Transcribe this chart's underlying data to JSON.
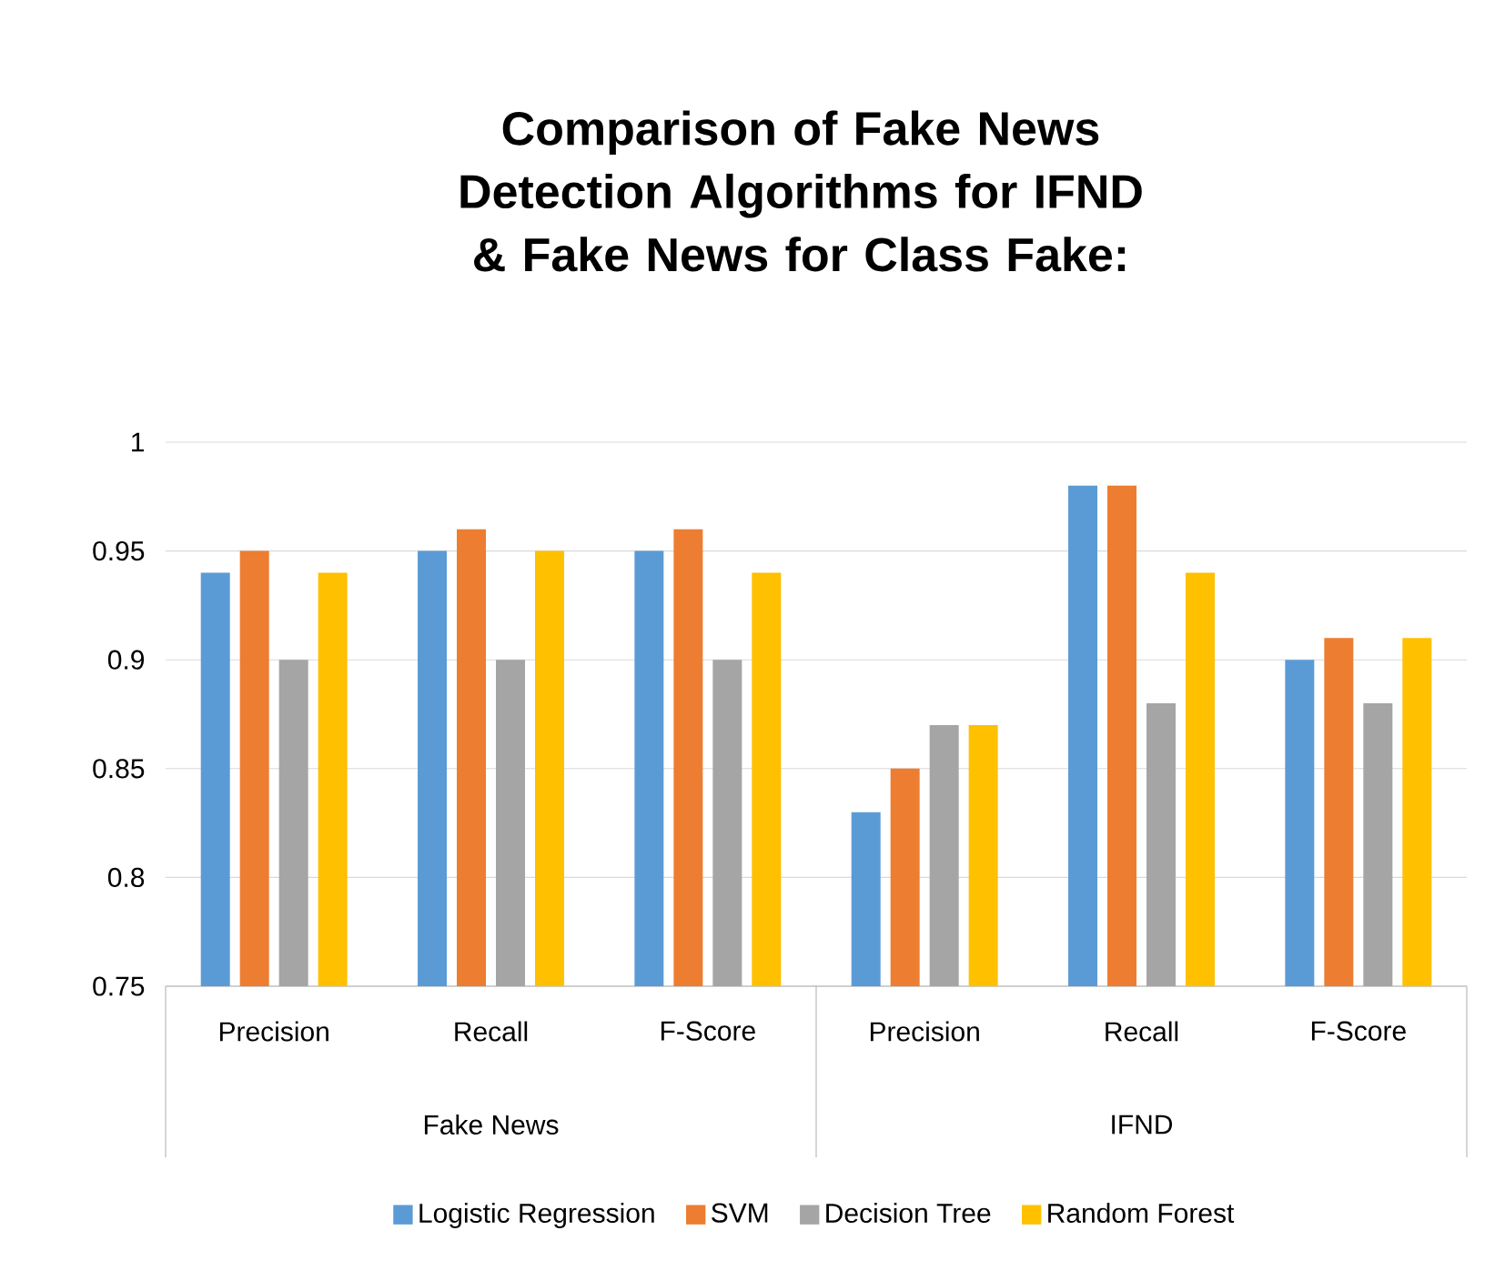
{
  "chart_data": {
    "type": "bar",
    "title": "Comparison of Fake News Detection Algorithms for IFND & Fake News for Class Fake:",
    "categories": [
      "Precision",
      "Recall",
      "F-Score",
      "Precision",
      "Recall",
      "F-Score"
    ],
    "annotations": [
      "Fake News",
      "IFND"
    ],
    "series": [
      {
        "name": "Logistic Regression",
        "color": "#5b9bd5",
        "values": [
          0.94,
          0.95,
          0.95,
          0.83,
          0.98,
          0.9
        ]
      },
      {
        "name": "SVM",
        "color": "#ed7d31",
        "values": [
          0.95,
          0.96,
          0.96,
          0.85,
          0.98,
          0.91
        ]
      },
      {
        "name": "Decision Tree",
        "color": "#a5a5a5",
        "values": [
          0.9,
          0.9,
          0.9,
          0.87,
          0.88,
          0.88
        ]
      },
      {
        "name": "Random Forest",
        "color": "#ffc000",
        "values": [
          0.94,
          0.95,
          0.94,
          0.87,
          0.94,
          0.91
        ]
      }
    ],
    "ylim": [
      0.75,
      1
    ],
    "yticks": [
      0.75,
      0.8,
      0.85,
      0.9,
      0.95,
      1
    ],
    "grid": "y",
    "legend": "bottom"
  }
}
